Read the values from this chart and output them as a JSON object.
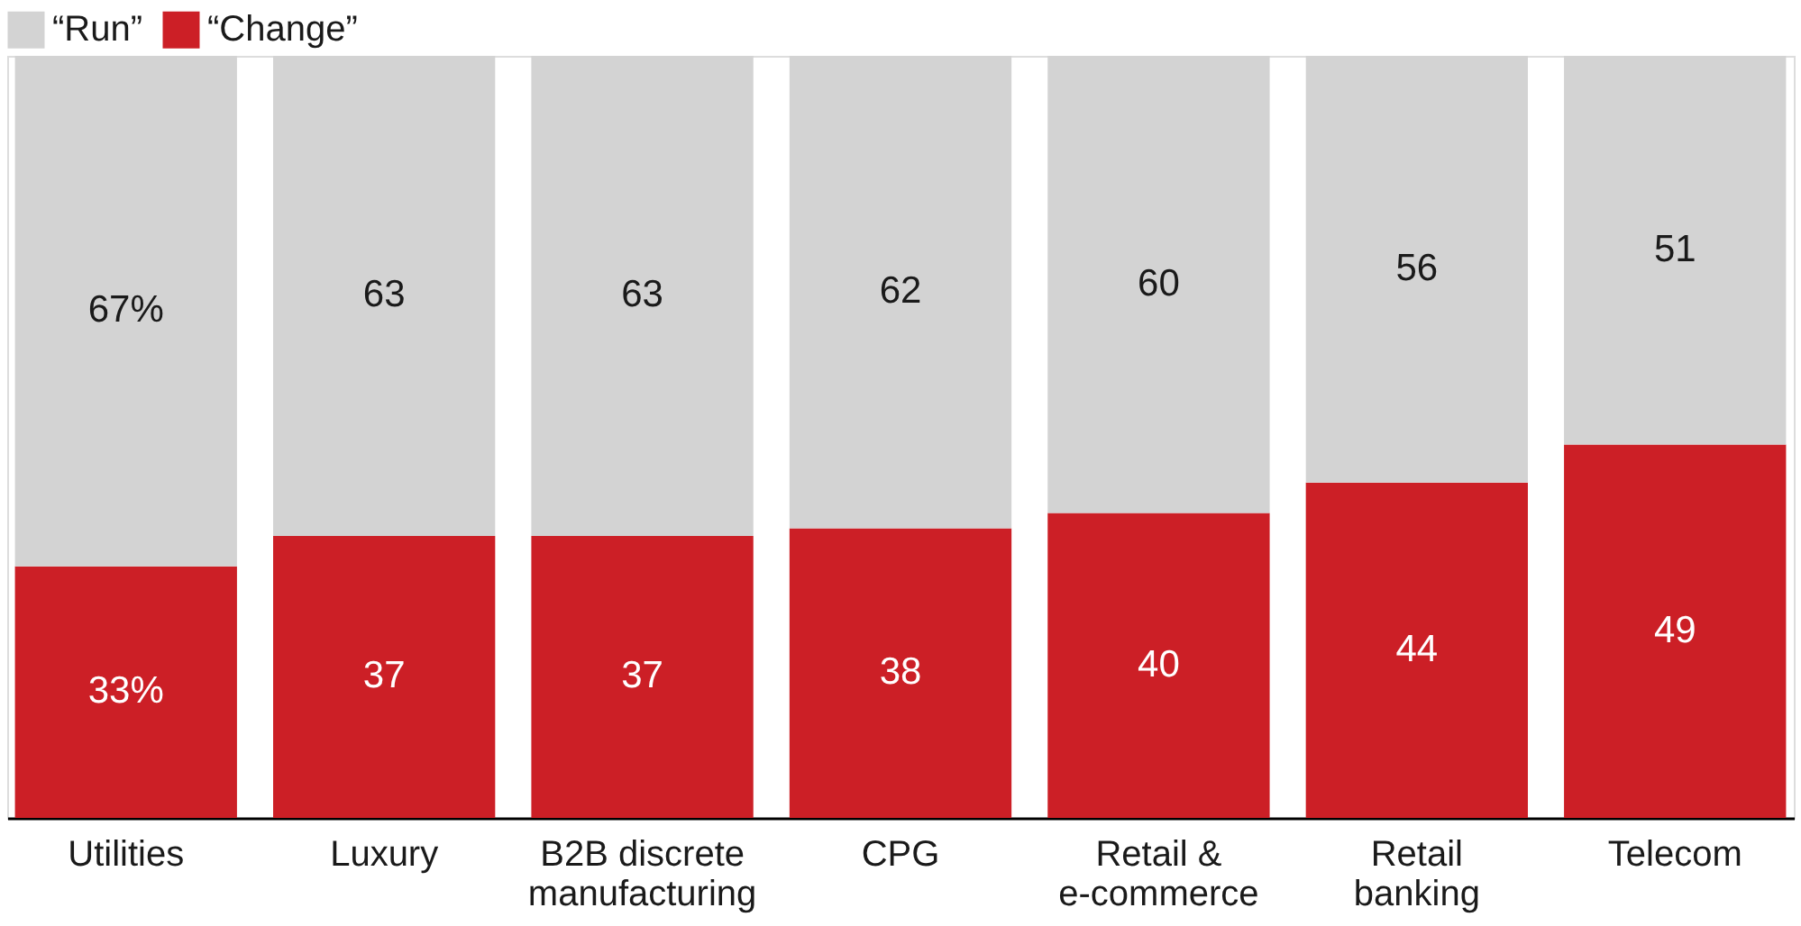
{
  "chart_data": {
    "type": "bar",
    "stacked": true,
    "categories": [
      "Utilities",
      "Luxury",
      "B2B discrete manufacturing",
      "CPG",
      "Retail & e-commerce",
      "Retail banking",
      "Telecom"
    ],
    "series": [
      {
        "name": "“Change”",
        "color": "#cc1f26",
        "values": [
          33,
          37,
          37,
          38,
          40,
          44,
          49
        ],
        "value_labels": [
          "33%",
          "37",
          "37",
          "38",
          "40",
          "44",
          "49"
        ]
      },
      {
        "name": "“Run”",
        "color": "#d3d3d3",
        "values": [
          67,
          63,
          63,
          62,
          60,
          56,
          51
        ],
        "value_labels": [
          "67%",
          "63",
          "63",
          "62",
          "60",
          "56",
          "51"
        ]
      }
    ],
    "ylim": [
      0,
      100
    ],
    "tick_labels": "x",
    "grid": false,
    "legend": "top left"
  }
}
